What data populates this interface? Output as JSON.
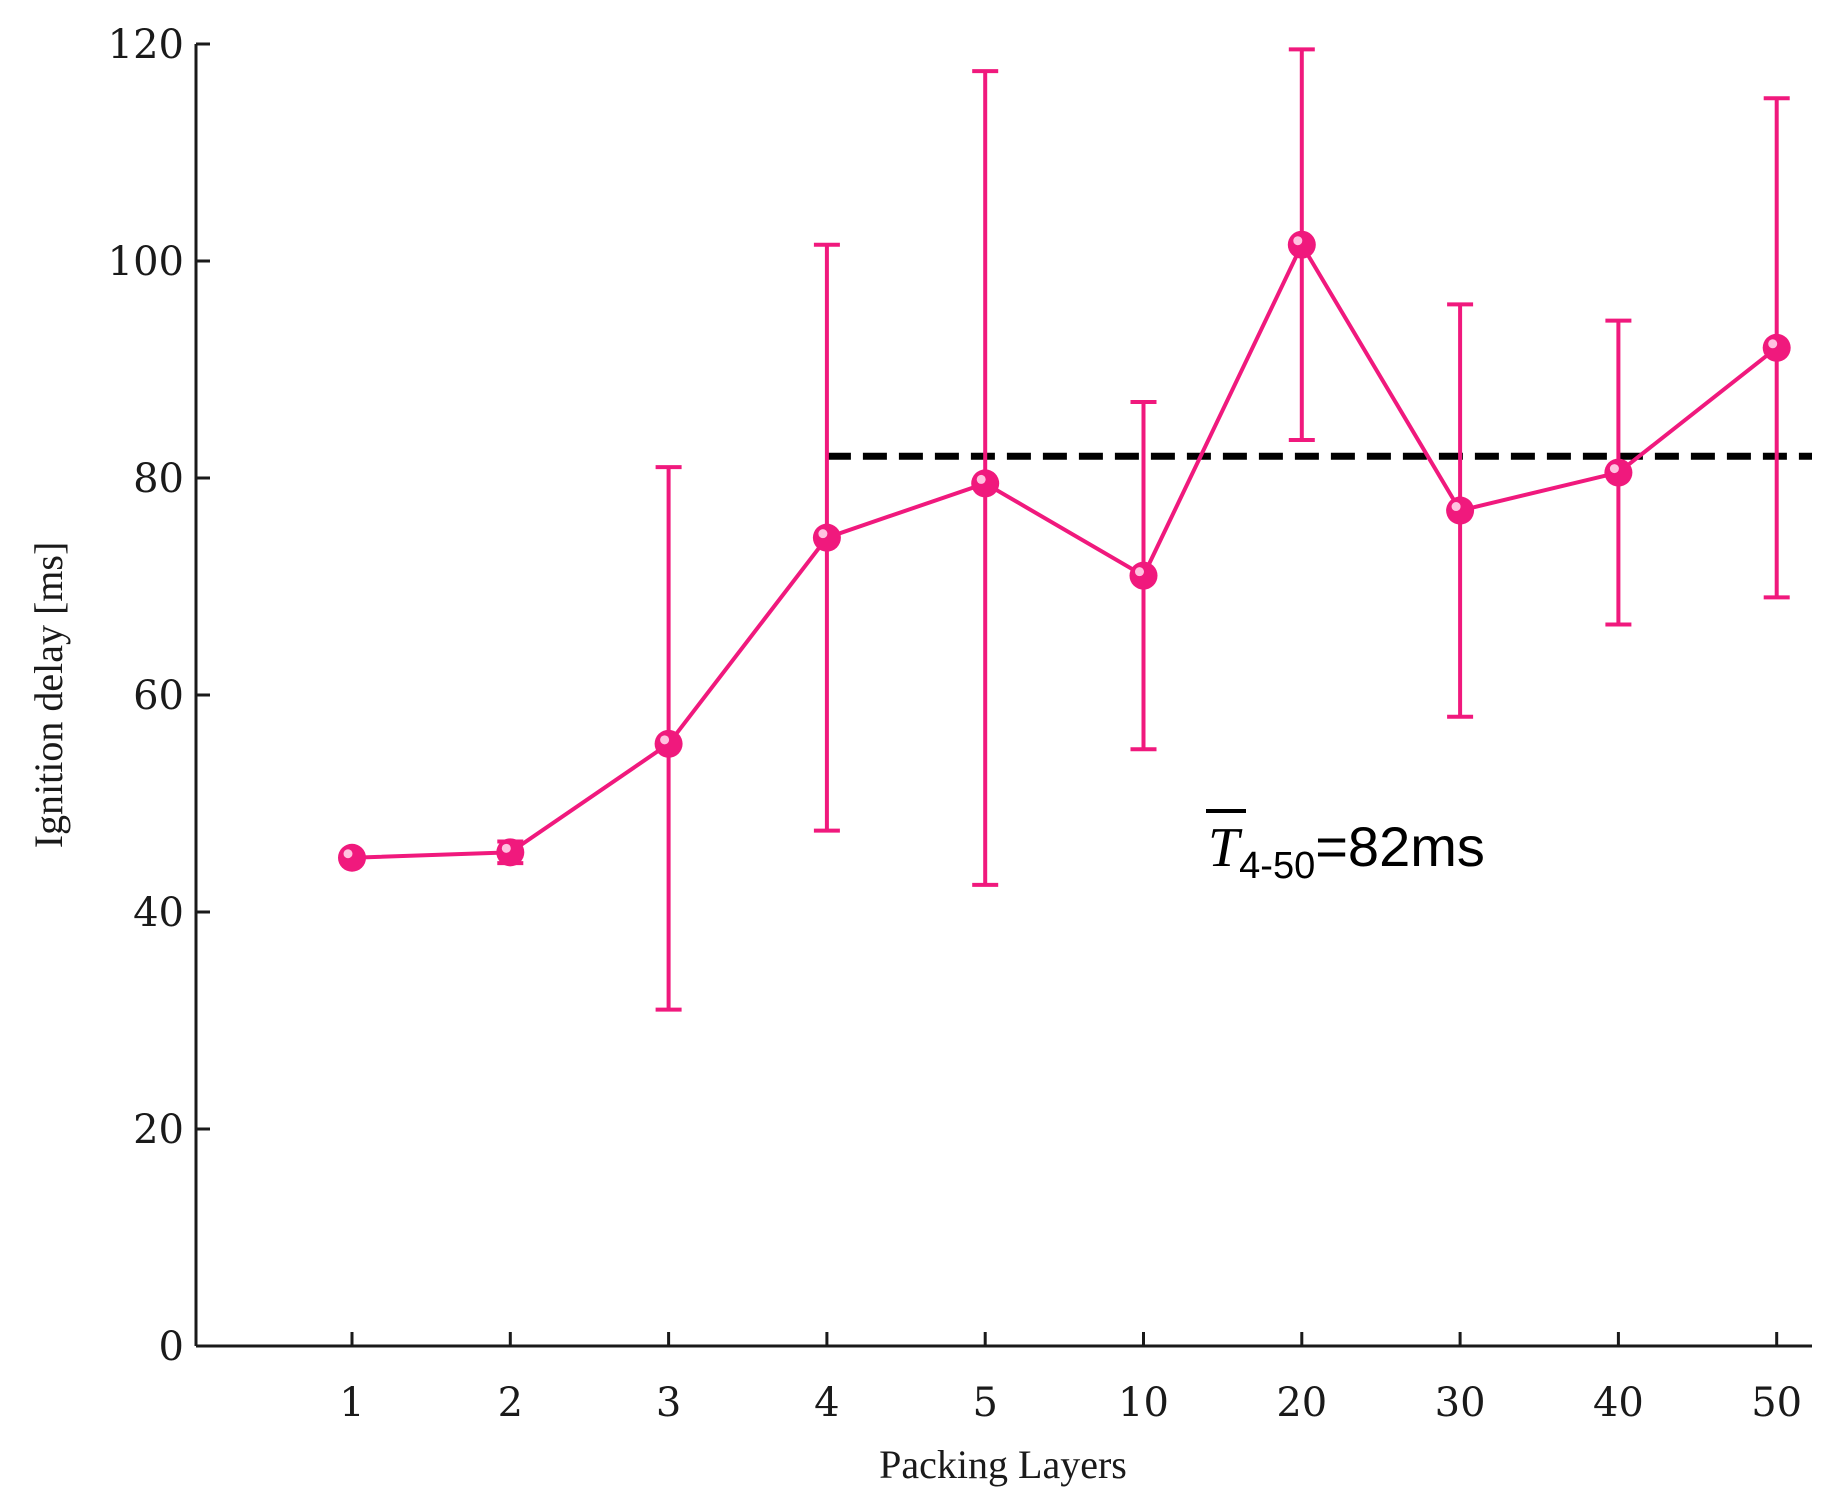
{
  "chart_data": {
    "type": "line",
    "xlabel": "Packing Layers",
    "ylabel": "Ignition delay [ms]",
    "ylim": [
      0,
      120
    ],
    "yticks": [
      "0",
      "20",
      "40",
      "60",
      "80",
      "100",
      "120"
    ],
    "categories": [
      "1",
      "2",
      "3",
      "4",
      "5",
      "10",
      "20",
      "30",
      "40",
      "50"
    ],
    "series": [
      {
        "values": [
          45,
          45.5,
          55.5,
          74.5,
          79.5,
          71,
          101.5,
          77,
          80.5,
          92
        ],
        "err_low": [
          45,
          44.5,
          31,
          47.5,
          42.5,
          55,
          83.5,
          58,
          66.5,
          69
        ],
        "err_high": [
          45,
          46.5,
          81,
          101.5,
          117.5,
          87,
          119.5,
          96,
          94.5,
          115
        ]
      }
    ],
    "reference_line": {
      "value": 82,
      "from_category": "4",
      "to_category": "50",
      "style": "dashed"
    },
    "annotation": {
      "symbol": "T",
      "subscript": "4-50",
      "text": "=82ms"
    },
    "colors": {
      "series": "#f0197d",
      "reference": "#000000",
      "axis": "#1a1a1a"
    },
    "grid": false,
    "legend": "none"
  }
}
